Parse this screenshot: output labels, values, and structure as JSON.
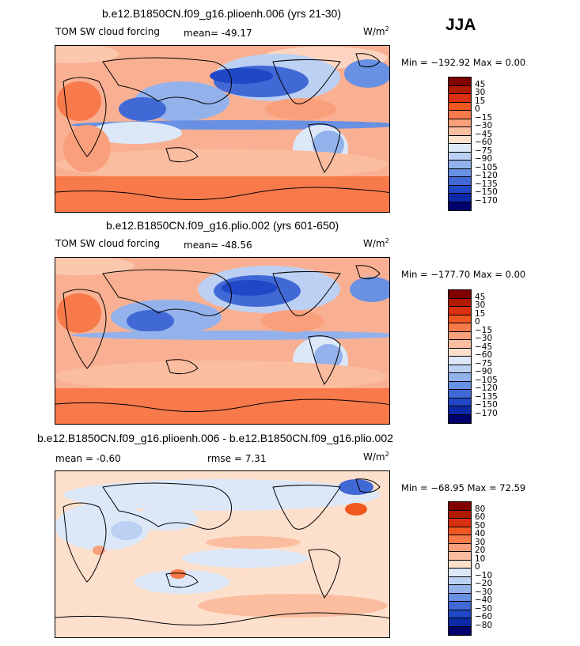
{
  "season": "JJA",
  "panels": [
    {
      "title": "b.e12.B1850CN.f09_g16.plioenh.006 (yrs 21-30)",
      "left_label": "TOM SW cloud forcing",
      "mean_label": "mean= -49.17",
      "units_text": "W/m",
      "units_exp": "2",
      "minmax_label": "Min = −192.92 Max =    0.00",
      "colorbar": {
        "colors": [
          "#800000",
          "#b01a00",
          "#d83010",
          "#f05820",
          "#f8794a",
          "#f99f7b",
          "#fbbda0",
          "#fde0cc",
          "#dce8f8",
          "#bcd0f3",
          "#93b2ec",
          "#6890e3",
          "#4169d6",
          "#2048c6",
          "#0c2aa8",
          "#00006c"
        ],
        "labels": [
          "45",
          "30",
          "15",
          "0",
          "−15",
          "−30",
          "−45",
          "−60",
          "−75",
          "−90",
          "−105",
          "−120",
          "−135",
          "−150",
          "−170"
        ]
      }
    },
    {
      "title": "b.e12.B1850CN.f09_g16.plio.002 (yrs 601-650)",
      "left_label": "TOM SW cloud forcing",
      "mean_label": "mean= -48.56",
      "units_text": "W/m",
      "units_exp": "2",
      "minmax_label": "Min = −177.70 Max =    0.00",
      "colorbar": {
        "colors": [
          "#800000",
          "#b01a00",
          "#d83010",
          "#f05820",
          "#f8794a",
          "#f99f7b",
          "#fbbda0",
          "#fde0cc",
          "#dce8f8",
          "#bcd0f3",
          "#93b2ec",
          "#6890e3",
          "#4169d6",
          "#2048c6",
          "#0c2aa8",
          "#00006c"
        ],
        "labels": [
          "45",
          "30",
          "15",
          "0",
          "−15",
          "−30",
          "−45",
          "−60",
          "−75",
          "−90",
          "−105",
          "−120",
          "−135",
          "−150",
          "−170"
        ]
      }
    },
    {
      "title": "b.e12.B1850CN.f09_g16.plioenh.006 - b.e12.B1850CN.f09_g16.plio.002",
      "mean_label": "mean =  -0.60",
      "rmse_label": "rmse =   7.31",
      "units_text": "W/m",
      "units_exp": "2",
      "minmax_label": "Min = −68.95 Max =  72.59",
      "colorbar": {
        "colors": [
          "#800000",
          "#b01a00",
          "#d83010",
          "#f05820",
          "#f8794a",
          "#f99f7b",
          "#fbbda0",
          "#fde0cc",
          "#dce8f8",
          "#bcd0f3",
          "#93b2ec",
          "#6890e3",
          "#4169d6",
          "#2048c6",
          "#0c2aa8",
          "#00006c"
        ],
        "labels": [
          "80",
          "60",
          "50",
          "40",
          "30",
          "20",
          "10",
          "0",
          "−10",
          "−20",
          "−30",
          "−40",
          "−50",
          "−60",
          "−80"
        ]
      }
    }
  ],
  "chart_data": [
    {
      "type": "heatmap",
      "title": "b.e12.B1850CN.f09_g16.plioenh.006 (yrs 21-30)",
      "variable": "TOM SW cloud forcing",
      "season": "JJA",
      "units": "W/m2",
      "mean": -49.17,
      "min": -192.92,
      "max": 0.0,
      "contour_levels": [
        45,
        30,
        15,
        0,
        -15,
        -30,
        -45,
        -60,
        -75,
        -90,
        -105,
        -120,
        -135,
        -150,
        -170
      ]
    },
    {
      "type": "heatmap",
      "title": "b.e12.B1850CN.f09_g16.plio.002 (yrs 601-650)",
      "variable": "TOM SW cloud forcing",
      "season": "JJA",
      "units": "W/m2",
      "mean": -48.56,
      "min": -177.7,
      "max": 0.0,
      "contour_levels": [
        45,
        30,
        15,
        0,
        -15,
        -30,
        -45,
        -60,
        -75,
        -90,
        -105,
        -120,
        -135,
        -150,
        -170
      ]
    },
    {
      "type": "heatmap",
      "title": "b.e12.B1850CN.f09_g16.plioenh.006 - b.e12.B1850CN.f09_g16.plio.002",
      "season": "JJA",
      "units": "W/m2",
      "mean": -0.6,
      "rmse": 7.31,
      "min": -68.95,
      "max": 72.59,
      "contour_levels": [
        80,
        60,
        50,
        40,
        30,
        20,
        10,
        0,
        -10,
        -20,
        -30,
        -40,
        -50,
        -60,
        -80
      ]
    }
  ]
}
